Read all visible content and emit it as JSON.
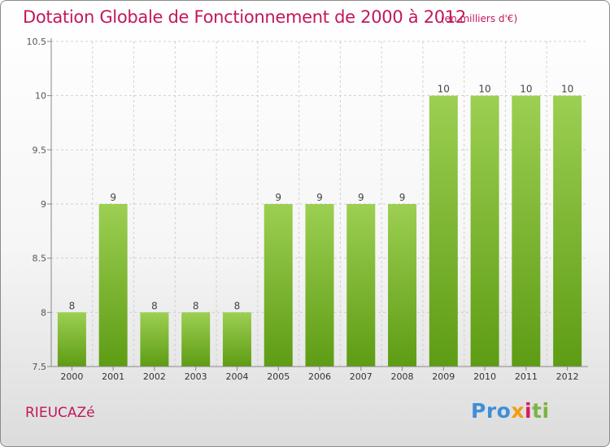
{
  "header": {
    "title": "Dotation Globale de Fonctionnement de 2000 à 2012",
    "unit": "(en milliers d'€)"
  },
  "footer": {
    "commune": "RIEUCAZé",
    "logo_text": "Proxiti",
    "logo_parts": [
      "Pro",
      "x",
      "i",
      "ti"
    ]
  },
  "colors": {
    "bar_top": "#9ccf52",
    "bar_bottom": "#5e9c14",
    "title": "#c2185b",
    "grid": "#d0d0d0",
    "axis": "#888888"
  },
  "chart_data": {
    "type": "bar",
    "title": "Dotation Globale de Fonctionnement de 2000 à 2012",
    "subtitle": "(en milliers d'€)",
    "categories": [
      "2000",
      "2001",
      "2002",
      "2003",
      "2004",
      "2005",
      "2006",
      "2007",
      "2008",
      "2009",
      "2010",
      "2011",
      "2012"
    ],
    "values": [
      8,
      9,
      8,
      8,
      8,
      9,
      9,
      9,
      9,
      10,
      10,
      10,
      10
    ],
    "data_labels": [
      "8",
      "9",
      "8",
      "8",
      "8",
      "9",
      "9",
      "9",
      "9",
      "10",
      "10",
      "10",
      "10"
    ],
    "ylim": [
      7.5,
      10.5
    ],
    "yticks": [
      7.5,
      8,
      8.5,
      9,
      9.5,
      10,
      10.5
    ],
    "ytick_labels": [
      "7.5",
      "8",
      "8.5",
      "9",
      "9.5",
      "10",
      "10.5"
    ],
    "xlabel": "",
    "ylabel": "",
    "grid": true
  }
}
